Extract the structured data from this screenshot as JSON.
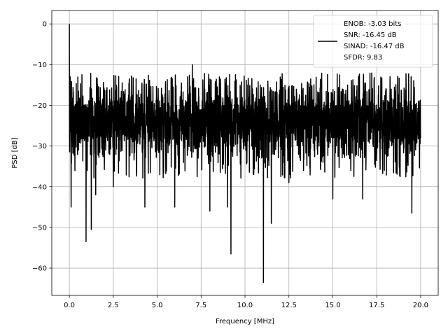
{
  "chart_data": {
    "type": "line",
    "xlabel": "Frequency [MHz]",
    "ylabel": "PSD [dB]",
    "xlim": [
      -1.0,
      21.0
    ],
    "ylim": [
      -66.7,
      3.3
    ],
    "xticks": [
      0.0,
      2.5,
      5.0,
      7.5,
      10.0,
      12.5,
      15.0,
      17.5,
      20.0
    ],
    "xtick_labels": [
      "0.0",
      "2.5",
      "5.0",
      "7.5",
      "10.0",
      "12.5",
      "15.0",
      "17.5",
      "20.0"
    ],
    "yticks": [
      0,
      -10,
      -20,
      -30,
      -40,
      -50,
      -60
    ],
    "ytick_labels": [
      "0",
      "−10",
      "−20",
      "−30",
      "−40",
      "−50",
      "−60"
    ],
    "grid": true,
    "legend_position": "top-right",
    "legend_lines": [
      "ENOB: -3.03 bits",
      "SNR: -16.45 dB",
      "SINAD: -16.47 dB",
      "SFDR: 9.83"
    ],
    "series_color": "#000000",
    "x_range": [
      0.0,
      20.0
    ],
    "noise_band": {
      "upper_typical": -15,
      "lower_typical": -33,
      "center": -24
    },
    "notable_points": [
      {
        "x": 0.0,
        "y": 0.0
      },
      {
        "x": 0.05,
        "y": -13
      },
      {
        "x": 0.1,
        "y": -45
      },
      {
        "x": 0.95,
        "y": -53.5
      },
      {
        "x": 1.25,
        "y": -50.5
      },
      {
        "x": 1.5,
        "y": -42
      },
      {
        "x": 2.5,
        "y": -40
      },
      {
        "x": 4.3,
        "y": -45
      },
      {
        "x": 6.0,
        "y": -45
      },
      {
        "x": 7.0,
        "y": -10
      },
      {
        "x": 8.0,
        "y": -46
      },
      {
        "x": 9.0,
        "y": -45
      },
      {
        "x": 9.2,
        "y": -56.5
      },
      {
        "x": 10.5,
        "y": -37
      },
      {
        "x": 11.05,
        "y": -63.5
      },
      {
        "x": 11.5,
        "y": -49
      },
      {
        "x": 12.5,
        "y": -39
      },
      {
        "x": 15.0,
        "y": -43
      },
      {
        "x": 16.7,
        "y": -43
      },
      {
        "x": 19.5,
        "y": -46.5
      },
      {
        "x": 20.0,
        "y": -28
      }
    ]
  }
}
